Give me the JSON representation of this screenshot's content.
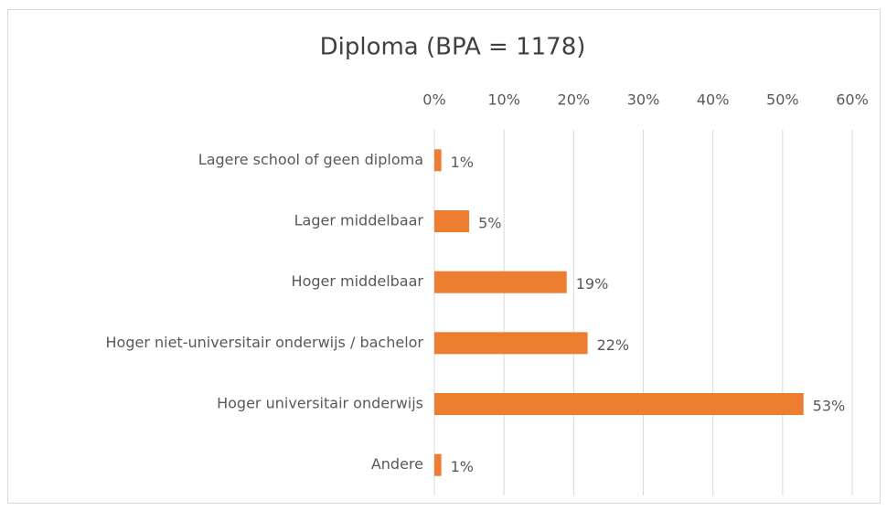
{
  "chart_data": {
    "type": "bar",
    "orientation": "horizontal",
    "title": "Diploma (BPA = 1178)",
    "categories": [
      "Lagere school of geen diploma",
      "Lager middelbaar",
      "Hoger middelbaar",
      "Hoger niet-universitair onderwijs / bachelor",
      "Hoger universitair onderwijs",
      "Andere"
    ],
    "values": [
      1,
      5,
      19,
      22,
      53,
      1
    ],
    "value_labels": [
      "1%",
      "5%",
      "19%",
      "22%",
      "53%",
      "1%"
    ],
    "color": "#ed7d31",
    "xlim": [
      0,
      60
    ],
    "xticks": [
      {
        "value": 0,
        "label": "0%"
      },
      {
        "value": 10,
        "label": "10%"
      },
      {
        "value": 20,
        "label": "20%"
      },
      {
        "value": 30,
        "label": "30%"
      },
      {
        "value": 40,
        "label": "40%"
      },
      {
        "value": 50,
        "label": "50%"
      },
      {
        "value": 60,
        "label": "60%"
      }
    ],
    "grid": true,
    "xaxis_position": "top"
  }
}
